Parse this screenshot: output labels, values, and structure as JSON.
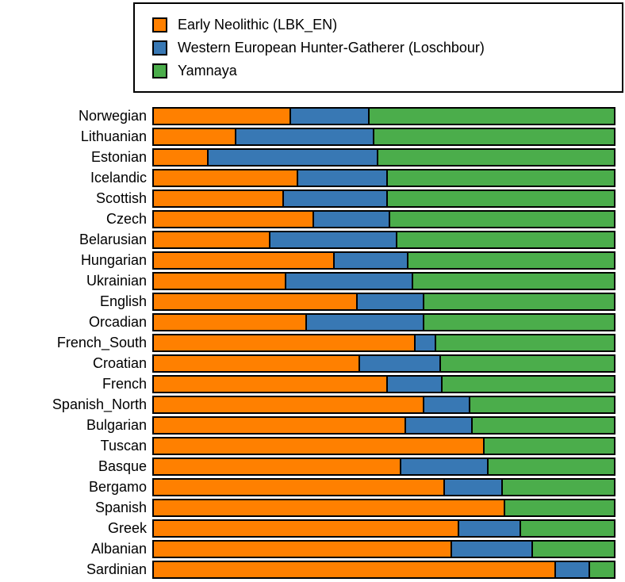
{
  "legend": {
    "items": [
      {
        "label": "Early Neolithic (LBK_EN)",
        "color": "#FF8000"
      },
      {
        "label": "Western European Hunter-Gatherer (Loschbour)",
        "color": "#3878B4"
      },
      {
        "label": "Yamnaya",
        "color": "#4BAD4B"
      }
    ]
  },
  "chart_data": {
    "type": "bar",
    "subtype": "horizontal_stacked_percentage",
    "title": "",
    "xlabel": "",
    "ylabel": "",
    "xlim": [
      0,
      100
    ],
    "grid": false,
    "legend_position": "top",
    "bar_outline_color": "#000000",
    "categories": [
      "Norwegian",
      "Lithuanian",
      "Estonian",
      "Icelandic",
      "Scottish",
      "Czech",
      "Belarusian",
      "Hungarian",
      "Ukrainian",
      "English",
      "Orcadian",
      "French_South",
      "Croatian",
      "French",
      "Spanish_North",
      "Bulgarian",
      "Tuscan",
      "Basque",
      "Bergamo",
      "Spanish",
      "Greek",
      "Albanian",
      "Sardinian"
    ],
    "series": [
      {
        "name": "Early Neolithic (LBK_EN)",
        "color": "#FF8000",
        "values": [
          29.5,
          17.5,
          11.5,
          31,
          28,
          34.5,
          25,
          39,
          28.5,
          44,
          33,
          56.5,
          44.5,
          50.5,
          58.5,
          54.5,
          71.5,
          53.5,
          63,
          76,
          66,
          64.5,
          87
        ]
      },
      {
        "name": "Western European Hunter-Gatherer (Loschbour)",
        "color": "#3878B4",
        "values": [
          17,
          30,
          37,
          19.5,
          22.5,
          16.5,
          27.5,
          16,
          27.5,
          14.5,
          25.5,
          4.5,
          17.5,
          12,
          10,
          14.5,
          0,
          19,
          12.5,
          0,
          13.5,
          17.5,
          7.5
        ]
      },
      {
        "name": "Yamnaya",
        "color": "#4BAD4B",
        "values": [
          53.5,
          52.5,
          51.5,
          49.5,
          49.5,
          49,
          47.5,
          45,
          44,
          41.5,
          41.5,
          39,
          38,
          37.5,
          31.5,
          31,
          28.5,
          27.5,
          24.5,
          24,
          20.5,
          18,
          5.5
        ]
      }
    ]
  }
}
